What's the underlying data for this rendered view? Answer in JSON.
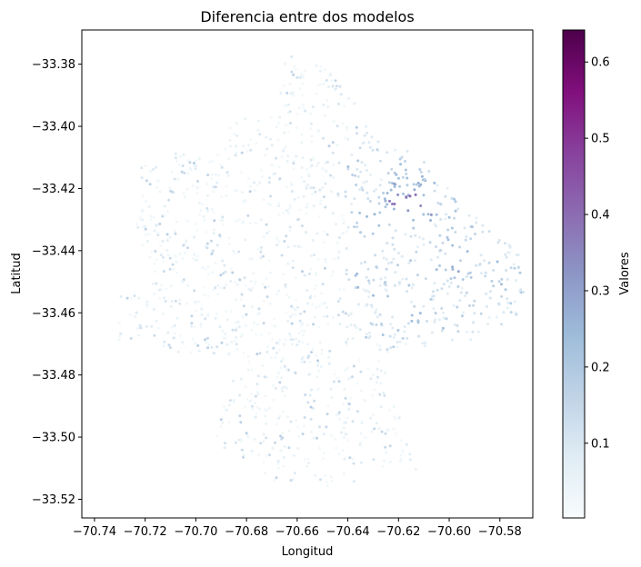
{
  "chart_data": {
    "type": "scatter",
    "title": "Diferencia entre dos modelos",
    "xlabel": "Longitud",
    "ylabel": "Latitud",
    "xlim": [
      -70.745,
      -70.567
    ],
    "ylim": [
      -33.526,
      -33.369
    ],
    "xticks": [
      -70.74,
      -70.72,
      -70.7,
      -70.68,
      -70.66,
      -70.64,
      -70.62,
      -70.6,
      -70.58
    ],
    "xtick_labels": [
      "−70.74",
      "−70.72",
      "−70.70",
      "−70.68",
      "−70.66",
      "−70.64",
      "−70.62",
      "−70.60",
      "−70.58"
    ],
    "yticks": [
      -33.38,
      -33.4,
      -33.42,
      -33.44,
      -33.46,
      -33.48,
      -33.5,
      -33.52
    ],
    "ytick_labels": [
      "−33.38",
      "−33.40",
      "−33.42",
      "−33.44",
      "−33.46",
      "−33.48",
      "−33.50",
      "−33.52"
    ],
    "grid": false,
    "colormap": "BuPu",
    "colorbar": {
      "label": "Valores",
      "vmin": 0.002,
      "vmax": 0.642,
      "ticks": [
        0.1,
        0.2,
        0.3,
        0.4,
        0.5,
        0.6
      ],
      "tick_labels": [
        "0.1",
        "0.2",
        "0.3",
        "0.4",
        "0.5",
        "0.6"
      ]
    },
    "region_outline": [
      [
        -70.665,
        -33.377
      ],
      [
        -70.652,
        -33.379
      ],
      [
        -70.64,
        -33.388
      ],
      [
        -70.635,
        -33.396
      ],
      [
        -70.628,
        -33.404
      ],
      [
        -70.618,
        -33.407
      ],
      [
        -70.608,
        -33.412
      ],
      [
        -70.596,
        -33.425
      ],
      [
        -70.585,
        -33.432
      ],
      [
        -70.578,
        -33.436
      ],
      [
        -70.572,
        -33.442
      ],
      [
        -70.57,
        -33.452
      ],
      [
        -70.574,
        -33.462
      ],
      [
        -70.583,
        -33.466
      ],
      [
        -70.595,
        -33.47
      ],
      [
        -70.607,
        -33.471
      ],
      [
        -70.62,
        -33.471
      ],
      [
        -70.625,
        -33.474
      ],
      [
        -70.624,
        -33.484
      ],
      [
        -70.617,
        -33.496
      ],
      [
        -70.613,
        -33.511
      ],
      [
        -70.628,
        -33.512
      ],
      [
        -70.642,
        -33.517
      ],
      [
        -70.657,
        -33.514
      ],
      [
        -70.669,
        -33.514
      ],
      [
        -70.678,
        -33.508
      ],
      [
        -70.687,
        -33.505
      ],
      [
        -70.694,
        -33.501
      ],
      [
        -70.688,
        -33.488
      ],
      [
        -70.684,
        -33.476
      ],
      [
        -70.693,
        -33.475
      ],
      [
        -70.708,
        -33.474
      ],
      [
        -70.718,
        -33.468
      ],
      [
        -70.728,
        -33.47
      ],
      [
        -70.732,
        -33.469
      ],
      [
        -70.731,
        -33.457
      ],
      [
        -70.732,
        -33.455
      ],
      [
        -70.717,
        -33.453
      ],
      [
        -70.723,
        -33.442
      ],
      [
        -70.724,
        -33.432
      ],
      [
        -70.721,
        -33.42
      ],
      [
        -70.722,
        -33.412
      ],
      [
        -70.717,
        -33.41
      ],
      [
        -70.705,
        -33.408
      ],
      [
        -70.697,
        -33.411
      ],
      [
        -70.69,
        -33.408
      ],
      [
        -70.688,
        -33.402
      ],
      [
        -70.683,
        -33.397
      ],
      [
        -70.676,
        -33.396
      ],
      [
        -70.669,
        -33.394
      ],
      [
        -70.666,
        -33.385
      ]
    ],
    "hotspots": [
      [
        -70.631,
        -33.431,
        0.4
      ],
      [
        -70.623,
        -33.425,
        0.45
      ],
      [
        -70.619,
        -33.425,
        0.58
      ],
      [
        -70.614,
        -33.424,
        0.55
      ],
      [
        -70.61,
        -33.427,
        0.5
      ],
      [
        -70.621,
        -33.421,
        0.42
      ],
      [
        -70.633,
        -33.429,
        0.38
      ],
      [
        -70.628,
        -33.436,
        0.3
      ],
      [
        -70.597,
        -33.446,
        0.35
      ],
      [
        -70.592,
        -33.441,
        0.3
      ],
      [
        -70.602,
        -33.437,
        0.28
      ],
      [
        -70.612,
        -33.462,
        0.32
      ],
      [
        -70.58,
        -33.452,
        0.3
      ],
      [
        -70.64,
        -33.418,
        0.28
      ],
      [
        -70.636,
        -33.447,
        0.26
      ],
      [
        -70.656,
        -33.49,
        0.24
      ],
      [
        -70.62,
        -33.414,
        0.34
      ],
      [
        -70.611,
        -33.419,
        0.36
      ]
    ]
  }
}
